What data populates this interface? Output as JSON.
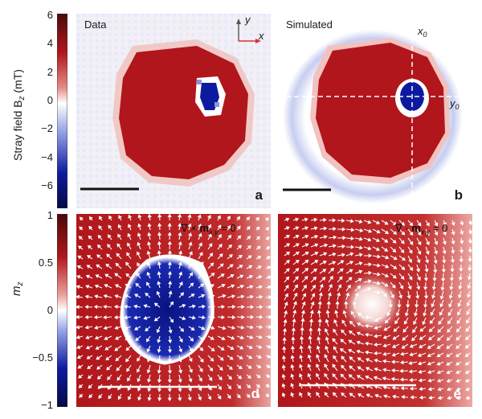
{
  "colorbar_top": {
    "title": "Stray field B",
    "title_sub": "z",
    "unit": " (mT)",
    "ticks": [
      "6",
      "4",
      "2",
      "0",
      "−2",
      "−4",
      "−6"
    ],
    "range": [
      -7,
      6
    ]
  },
  "colorbar_bottom": {
    "title": "m",
    "title_sub": "z",
    "ticks": [
      "1",
      "0.5",
      "0",
      "−0.5",
      "−1"
    ],
    "range": [
      -1,
      1
    ]
  },
  "panels": {
    "a": {
      "title": "Data",
      "label": "a"
    },
    "b": {
      "title": "Simulated",
      "label": "b",
      "x0": "x",
      "x0_sub": "0",
      "y0": "y",
      "y0_sub": "0"
    },
    "d": {
      "label": "d",
      "formula_pre": "∇ × ",
      "formula_m": "m",
      "formula_sub": "x,y",
      "formula_post": " = 0"
    },
    "e": {
      "label": "e",
      "formula_pre": "∇ · ",
      "formula_m": "m",
      "formula_sub": "x,y",
      "formula_post": " = 0"
    }
  },
  "axes_indicator": {
    "x": "x",
    "y": "y"
  },
  "colors": {
    "red": "#b0161b",
    "blue": "#0d1aa0",
    "white": "#ffffff",
    "axis_arrow": "#e03030"
  }
}
